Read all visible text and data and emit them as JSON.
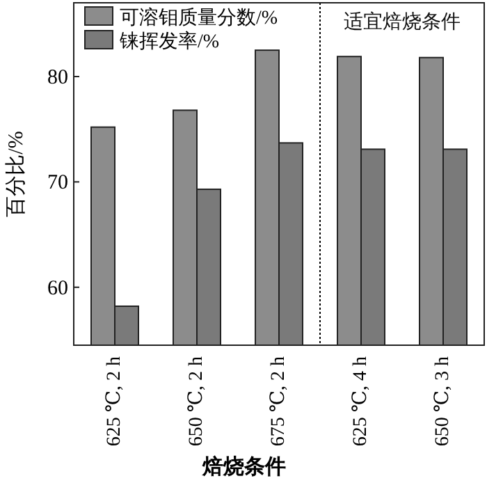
{
  "chart_data": {
    "type": "bar",
    "xlabel": "焙烧条件",
    "ylabel": "百分比/%",
    "categories": [
      "625 ℃, 2 h",
      "650 ℃, 2 h",
      "675 ℃, 2 h",
      "625 ℃, 4 h",
      "650 ℃, 3 h"
    ],
    "series": [
      {
        "name": "可溶钼质量分数/%",
        "color": "#8c8c8c",
        "values": [
          75.2,
          76.8,
          82.5,
          81.9,
          81.8
        ]
      },
      {
        "name": "铼挥发率/%",
        "color": "#7a7a7a",
        "values": [
          58.2,
          69.3,
          73.7,
          73.1,
          73.1
        ]
      }
    ],
    "ylim": [
      54.5,
      87
    ],
    "yticks": [
      60,
      70,
      80
    ],
    "legend": "top left",
    "annotations": [
      "适宜焙烧条件"
    ]
  }
}
